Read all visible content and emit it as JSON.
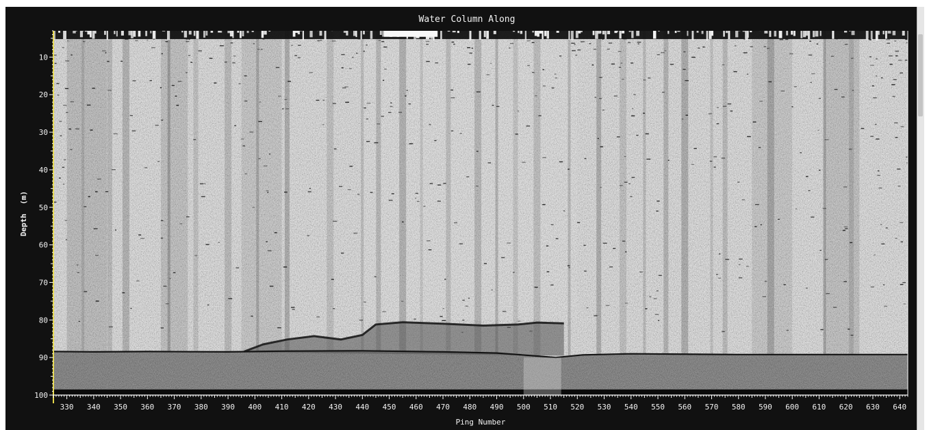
{
  "chart_data": {
    "type": "heatmap",
    "title": "Water Column Along",
    "xlabel": "Ping Number",
    "ylabel": "Depth  (m)",
    "x_ticks": [
      330,
      340,
      350,
      360,
      370,
      380,
      390,
      400,
      410,
      420,
      430,
      440,
      450,
      460,
      470,
      480,
      490,
      500,
      510,
      520,
      530,
      540,
      550,
      560,
      570,
      580,
      590,
      600,
      610,
      620,
      630,
      640
    ],
    "y_ticks": [
      10,
      20,
      30,
      40,
      50,
      60,
      70,
      80,
      90,
      100
    ],
    "xlim": [
      325,
      643
    ],
    "ylim": [
      3,
      100
    ],
    "grid": false,
    "colormap": "grayscale",
    "colors": {
      "background": "#111111",
      "axis": "#ffffff",
      "left_axis": "#e6d84a",
      "text": "#f2f2f2"
    },
    "bottom_profile": [
      {
        "ping": 325,
        "depth": 88.4
      },
      {
        "ping": 340,
        "depth": 88.5
      },
      {
        "ping": 360,
        "depth": 88.4
      },
      {
        "ping": 390,
        "depth": 88.5
      },
      {
        "ping": 410,
        "depth": 88.3
      },
      {
        "ping": 440,
        "depth": 88.2
      },
      {
        "ping": 470,
        "depth": 88.5
      },
      {
        "ping": 490,
        "depth": 88.8
      },
      {
        "ping": 505,
        "depth": 89.6
      },
      {
        "ping": 512,
        "depth": 90.0
      },
      {
        "ping": 522,
        "depth": 89.3
      },
      {
        "ping": 540,
        "depth": 89.0
      },
      {
        "ping": 580,
        "depth": 89.2
      },
      {
        "ping": 643,
        "depth": 89.2
      }
    ],
    "object_profile": [
      {
        "ping": 396,
        "depth": 88.4
      },
      {
        "ping": 403,
        "depth": 86.5
      },
      {
        "ping": 412,
        "depth": 85.2
      },
      {
        "ping": 422,
        "depth": 84.3
      },
      {
        "ping": 432,
        "depth": 85.2
      },
      {
        "ping": 440,
        "depth": 84.0
      },
      {
        "ping": 445,
        "depth": 81.2
      },
      {
        "ping": 455,
        "depth": 80.6
      },
      {
        "ping": 470,
        "depth": 81.0
      },
      {
        "ping": 485,
        "depth": 81.5
      },
      {
        "ping": 498,
        "depth": 81.2
      },
      {
        "ping": 505,
        "depth": 80.7
      },
      {
        "ping": 515,
        "depth": 80.9
      }
    ],
    "seafloor_depth": 98.5,
    "dark_stripe_pings": [
      336,
      346,
      352,
      368,
      378,
      390,
      401,
      412,
      428,
      440,
      446,
      455,
      462,
      472,
      483,
      490,
      497,
      505,
      517,
      528,
      537,
      545,
      553,
      560,
      570,
      575,
      592,
      612,
      622
    ]
  }
}
